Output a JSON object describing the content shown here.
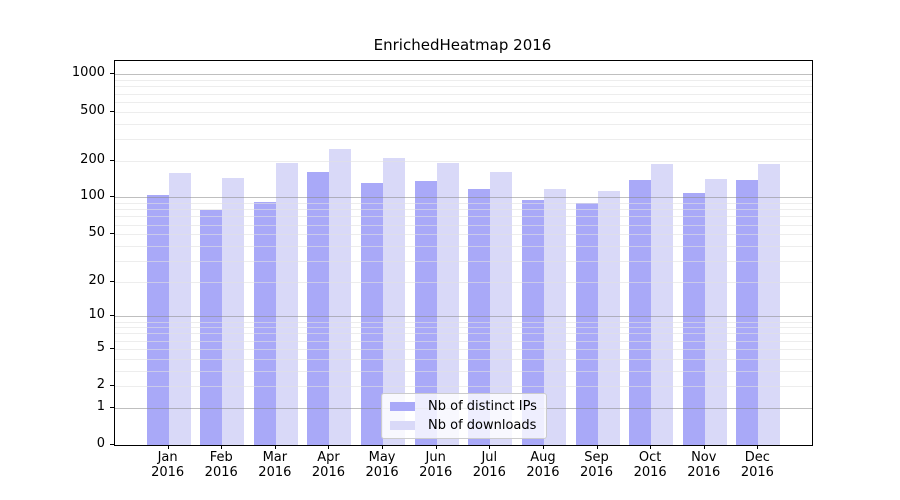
{
  "chart_data": {
    "type": "bar",
    "title": "EnrichedHeatmap 2016",
    "categories": [
      "Jan",
      "Feb",
      "Mar",
      "Apr",
      "May",
      "Jun",
      "Jul",
      "Aug",
      "Sep",
      "Oct",
      "Nov",
      "Dec"
    ],
    "category_year": "2016",
    "series": [
      {
        "name": "Nb of distinct IPs",
        "color": "#a9a9f8",
        "values": [
          105,
          79,
          92,
          160,
          131,
          136,
          117,
          96,
          90,
          138,
          109,
          140
        ]
      },
      {
        "name": "Nb of downloads",
        "color": "#d9d9f8",
        "values": [
          158,
          145,
          192,
          250,
          211,
          192,
          161,
          117,
          112,
          188,
          141,
          187
        ]
      }
    ],
    "yscale": "log1p",
    "ylim": [
      0,
      1286
    ],
    "yticks": [
      0,
      1,
      2,
      5,
      10,
      20,
      50,
      100,
      200,
      500,
      1000
    ],
    "ytick_major_grid": [
      1,
      10,
      100,
      1000
    ],
    "grid": true,
    "legend_position": "inside-bottom-center",
    "legend_order": [
      "Nb of distinct IPs",
      "Nb of downloads"
    ]
  }
}
